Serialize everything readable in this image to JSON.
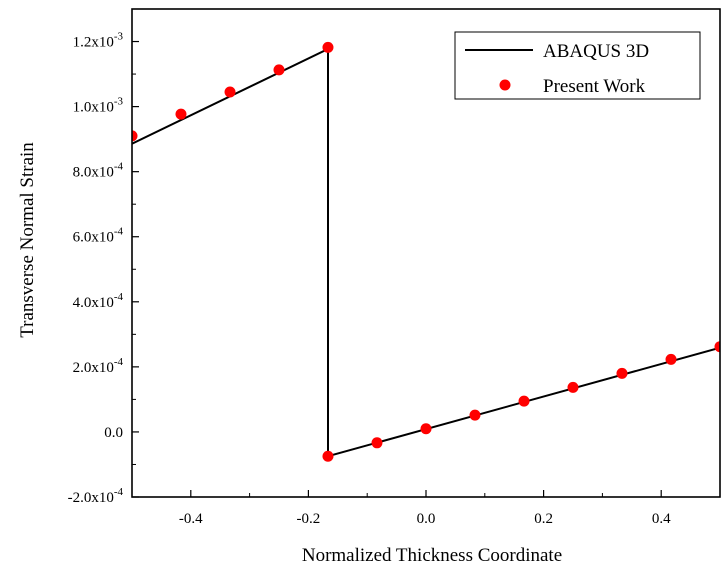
{
  "chart_data": {
    "type": "line",
    "title": "",
    "xlabel": "Normalized Thickness Coordinate",
    "ylabel": "Transverse Normal Strain",
    "xlim": [
      -0.5,
      0.5
    ],
    "ylim": [
      -0.0002,
      0.0013
    ],
    "grid": false,
    "legend_position": "top-right",
    "x_ticks": [
      {
        "value": -0.4,
        "label": "-0.4"
      },
      {
        "value": -0.2,
        "label": "-0.2"
      },
      {
        "value": 0.0,
        "label": "0.0"
      },
      {
        "value": 0.2,
        "label": "0.2"
      },
      {
        "value": 0.4,
        "label": "0.4"
      }
    ],
    "y_ticks": [
      {
        "value": -0.0002,
        "mantissa": "-2.0x10",
        "exponent": "-4"
      },
      {
        "value": 0.0,
        "mantissa": "0.0",
        "exponent": ""
      },
      {
        "value": 0.0002,
        "mantissa": "2.0x10",
        "exponent": "-4"
      },
      {
        "value": 0.0004,
        "mantissa": "4.0x10",
        "exponent": "-4"
      },
      {
        "value": 0.0006,
        "mantissa": "6.0x10",
        "exponent": "-4"
      },
      {
        "value": 0.0008,
        "mantissa": "8.0x10",
        "exponent": "-4"
      },
      {
        "value": 0.001,
        "mantissa": "1.0x10",
        "exponent": "-3"
      },
      {
        "value": 0.0012,
        "mantissa": "1.2x10",
        "exponent": "-3"
      }
    ],
    "series": [
      {
        "name": "ABAQUS 3D",
        "style": "line",
        "color": "#000000",
        "x": [
          -0.5,
          -0.1667,
          -0.1667,
          0.5
        ],
        "y": [
          0.000886,
          0.001177,
          -7.46e-05,
          0.000259
        ]
      },
      {
        "name": "Present Work",
        "style": "marker",
        "color": "#ff0000",
        "x": [
          -0.5,
          -0.4167,
          -0.3333,
          -0.25,
          -0.1667,
          -0.1667,
          -0.0833,
          0.0,
          0.0833,
          0.1667,
          0.25,
          0.3333,
          0.4167,
          0.5
        ],
        "y": [
          0.00091,
          0.000977,
          0.001045,
          0.001113,
          0.001182,
          -7.46e-05,
          -3.34e-05,
          9.8e-06,
          5.16e-05,
          9.46e-05,
          0.000137,
          0.00018,
          0.000223,
          0.000262
        ]
      }
    ]
  }
}
